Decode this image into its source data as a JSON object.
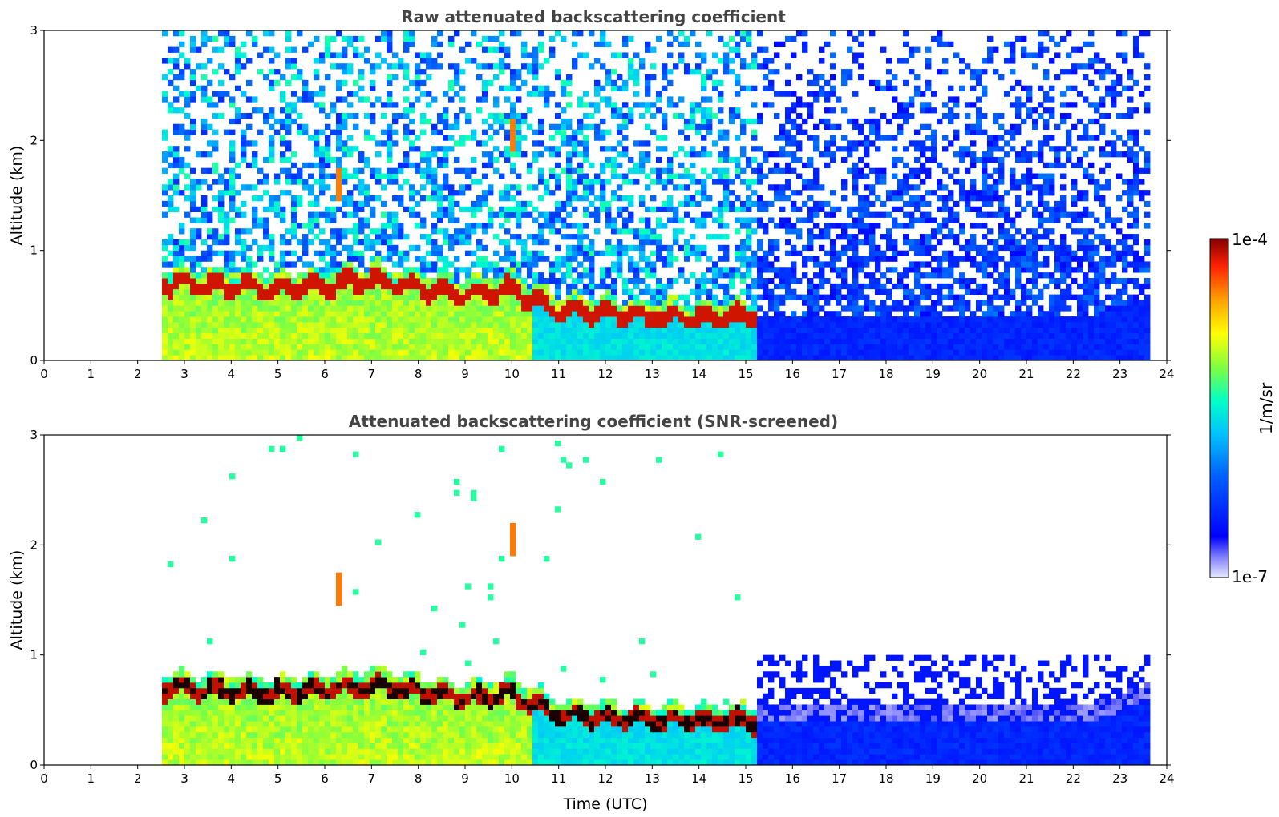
{
  "chart_data": [
    {
      "type": "heatmap",
      "title": "Raw attenuated backscattering coefficient",
      "xlabel": "",
      "ylabel": "Altitude (km)",
      "xlim": [
        0,
        24
      ],
      "ylim": [
        0,
        3
      ],
      "x_ticks": [
        "0",
        "1",
        "2",
        "3",
        "4",
        "5",
        "6",
        "7",
        "8",
        "9",
        "10",
        "11",
        "12",
        "13",
        "14",
        "15",
        "16",
        "17",
        "18",
        "19",
        "20",
        "21",
        "22",
        "23",
        "24"
      ],
      "y_ticks": [
        "0",
        "1",
        "2",
        "3"
      ],
      "data_time_range": [
        2.55,
        23.7
      ],
      "features": {
        "aerosol_layer_top_km": [
          [
            3,
            0.75
          ],
          [
            5,
            0.7
          ],
          [
            7,
            0.78
          ],
          [
            9,
            0.65
          ],
          [
            10,
            0.7
          ],
          [
            11,
            0.5
          ],
          [
            13,
            0.45
          ],
          [
            15,
            0.45
          ]
        ],
        "elevated_returns": [
          {
            "time": 6.3,
            "altitude_km": 1.6
          },
          {
            "time": 10.0,
            "altitude_km": 2.05
          }
        ],
        "night_noise_start_time": 15.2
      }
    },
    {
      "type": "heatmap",
      "title": "Attenuated backscattering coefficient (SNR-screened)",
      "xlabel": "Time (UTC)",
      "ylabel": "Altitude (km)",
      "xlim": [
        0,
        24
      ],
      "ylim": [
        0,
        3
      ],
      "x_ticks": [
        "0",
        "1",
        "2",
        "3",
        "4",
        "5",
        "6",
        "7",
        "8",
        "9",
        "10",
        "11",
        "12",
        "13",
        "14",
        "15",
        "16",
        "17",
        "18",
        "19",
        "20",
        "21",
        "22",
        "23",
        "24"
      ],
      "y_ticks": [
        "0",
        "1",
        "2",
        "3"
      ],
      "data_time_range": [
        2.55,
        23.7
      ],
      "features": {
        "aerosol_layer_top_km": [
          [
            3,
            0.75
          ],
          [
            5,
            0.7
          ],
          [
            7,
            0.78
          ],
          [
            9,
            0.65
          ],
          [
            10,
            0.7
          ],
          [
            11,
            0.5
          ],
          [
            13,
            0.45
          ],
          [
            15,
            0.45
          ]
        ],
        "elevated_returns": [
          {
            "time": 6.3,
            "altitude_km": 1.6
          },
          {
            "time": 10.0,
            "altitude_km": 2.05
          }
        ],
        "night_noise_start_time": 15.2
      }
    }
  ],
  "colorbar": {
    "label": "1/m/sr",
    "max_label": "1e-4",
    "min_label": "1e-7",
    "colormap": [
      "#e8e8ff",
      "#0000ff",
      "#00b4ff",
      "#00ffcc",
      "#7fff50",
      "#ffff00",
      "#ffa000",
      "#ff3000",
      "#800000"
    ]
  }
}
